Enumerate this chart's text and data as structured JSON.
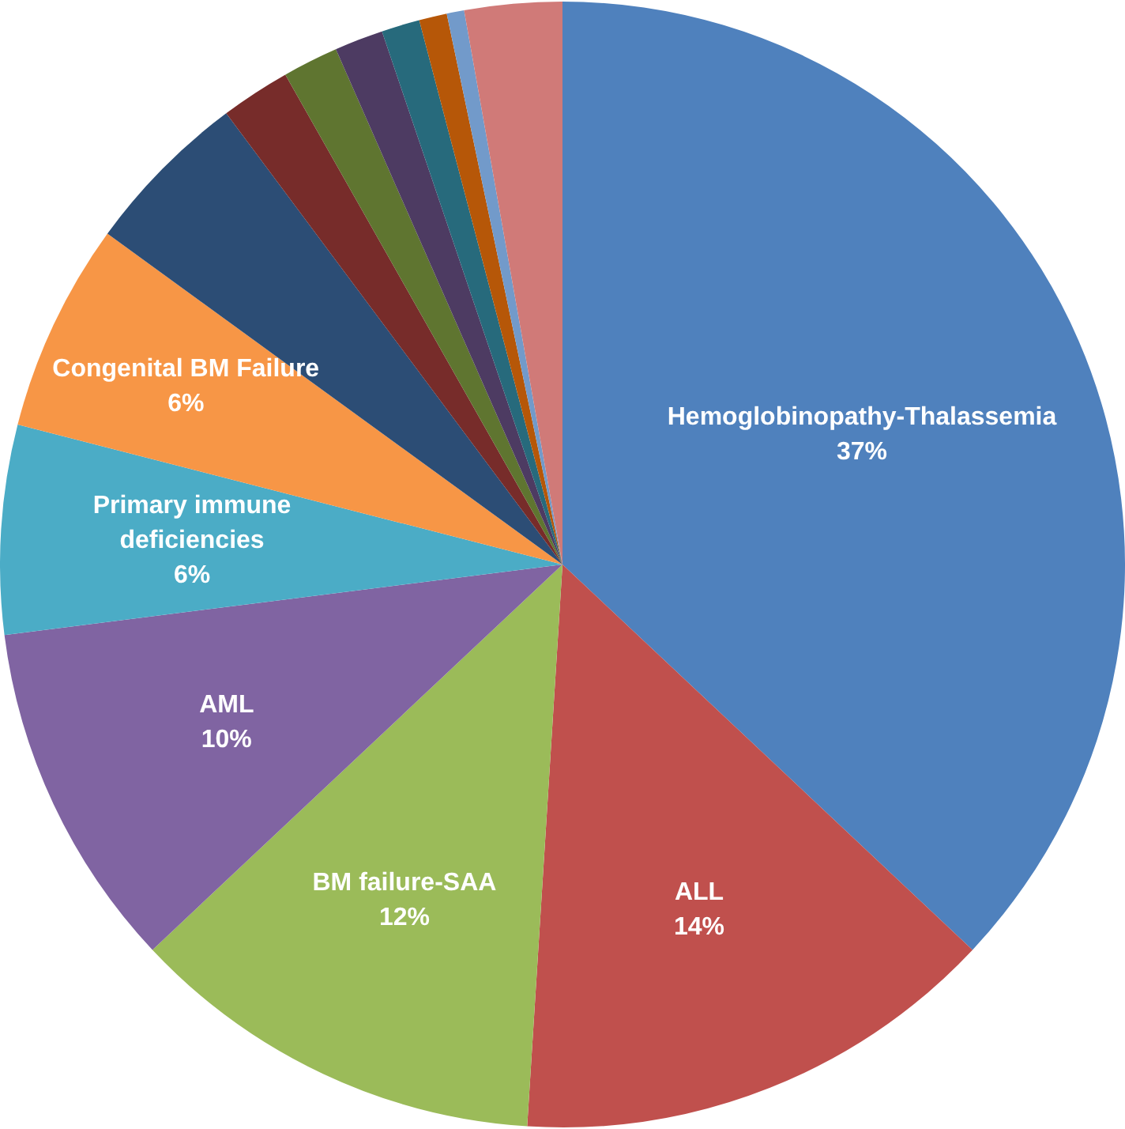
{
  "chart_data": {
    "type": "pie",
    "categories": [
      "Hemoglobinopathy-Thalassemia",
      "ALL",
      "BM failure-SAA",
      "AML",
      "Primary immune deficiencies",
      "Congenital BM Failure",
      null,
      null,
      null,
      null,
      null,
      null,
      null,
      null
    ],
    "values": [
      37,
      14,
      12,
      10,
      6,
      6,
      4.8,
      2,
      1.6,
      1.4,
      1.1,
      0.8,
      0.5,
      2.8
    ],
    "value_labels": [
      "37%",
      "14%",
      "12%",
      "10%",
      "6%",
      "6%",
      null,
      null,
      null,
      null,
      null,
      null,
      null,
      null
    ],
    "colors": [
      "#4f81bd",
      "#c0504d",
      "#9bbb59",
      "#8064a2",
      "#4bacc6",
      "#f79646",
      "#2c4d75",
      "#772c2a",
      "#5f7530",
      "#4d3b62",
      "#276a7c",
      "#b65708",
      "#729aca",
      "#d07a78"
    ],
    "legend": false
  }
}
